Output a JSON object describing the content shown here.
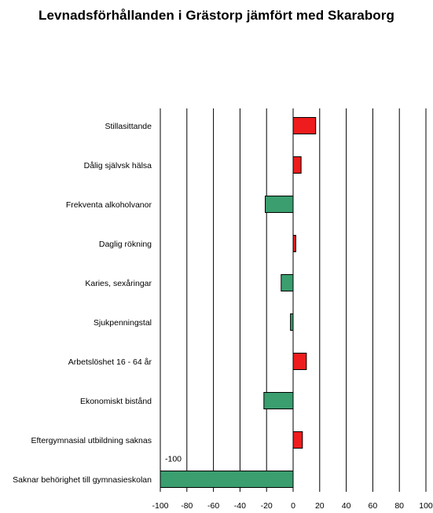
{
  "chart_data": {
    "type": "bar",
    "orientation": "horizontal",
    "title": "Levnadsförhållanden i Grästorp jämfört med Skaraborg",
    "categories": [
      "Stillasittande",
      "Dålig självsk hälsa",
      "Frekventa alkoholvanor",
      "Daglig rökning",
      "Karies, sexåringar",
      "Sjukpenningstal",
      "Arbetslöshet 16 - 64 år",
      "Ekonomiskt bistånd",
      "Eftergymnasial utbildning saknas",
      "Saknar behörighet till gymnasieskolan"
    ],
    "values": [
      17,
      6,
      -21,
      2,
      -9,
      -2,
      10,
      -22,
      7,
      -100
    ],
    "data_labels": [
      "",
      "",
      "",
      "",
      "",
      "",
      "",
      "",
      "",
      "-100"
    ],
    "xlim": [
      -100,
      100
    ],
    "xticks": [
      "-100",
      "-80",
      "-60",
      "-40",
      "-20",
      "0",
      "20",
      "40",
      "60",
      "80",
      "100"
    ],
    "grid": "vertical",
    "colors": {
      "positive": "#ee1c1c",
      "negative": "#3a9e6e",
      "bar_outline": "#000000",
      "gridline": "#000000"
    }
  }
}
